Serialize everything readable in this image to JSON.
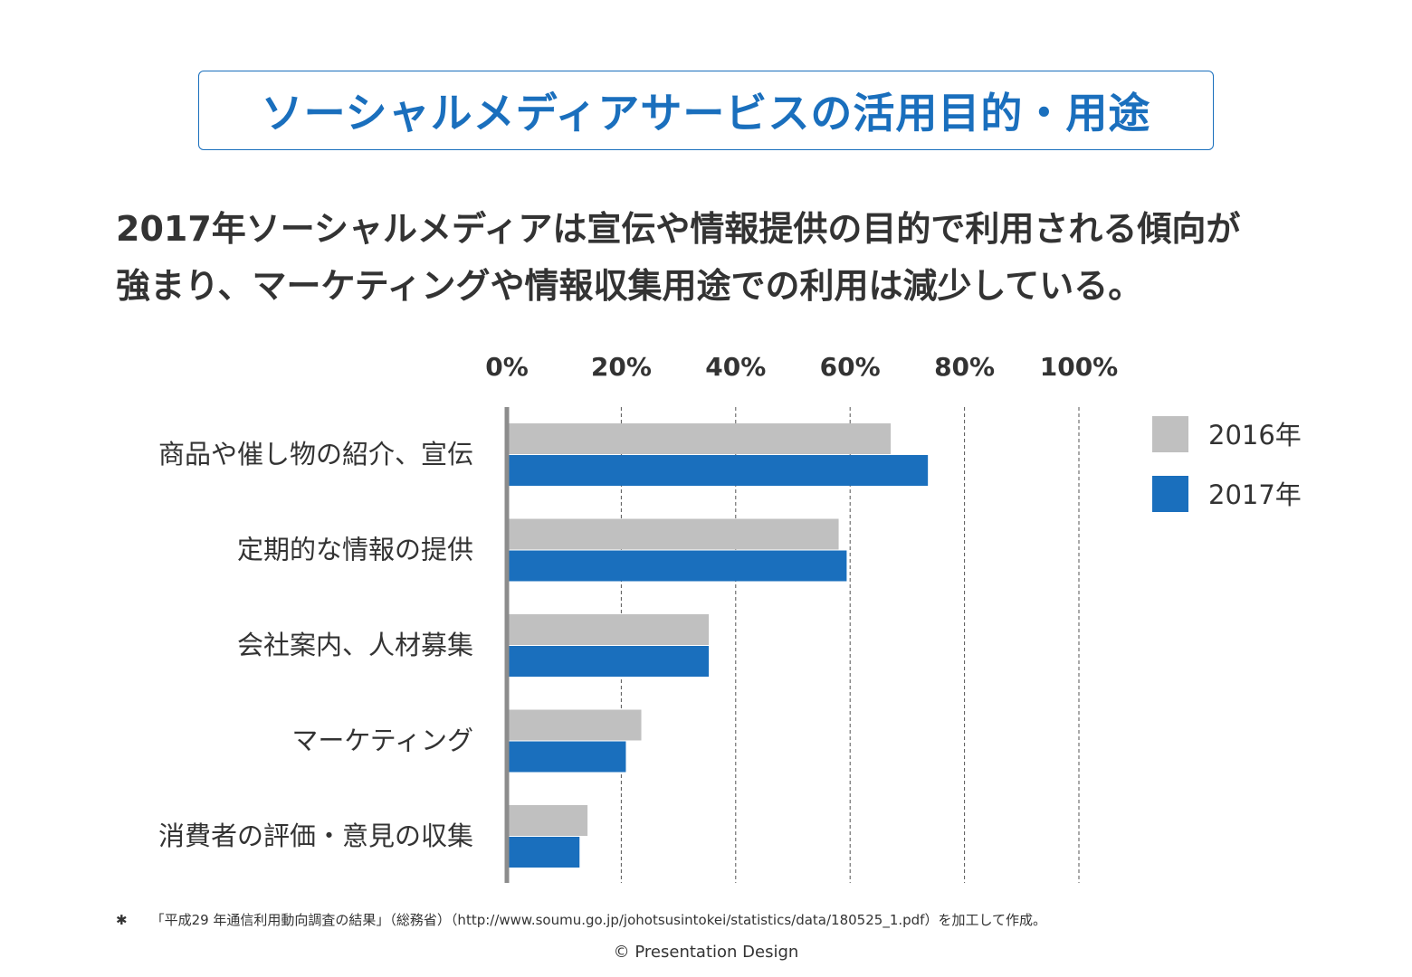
{
  "title": "ソーシャルメディアサービスの活用目的・用途",
  "subtitle": {
    "line1": "2017年ソーシャルメディアは宣伝や情報提供の目的で利用される傾向が",
    "line2": "強まり、マーケティングや情報収集用途での利用は減少している。"
  },
  "chart_data": {
    "type": "bar",
    "orientation": "horizontal",
    "categories": [
      "商品や催し物の紹介、宣伝",
      "定期的な情報の提供",
      "会社案内、人材募集",
      "マーケティング",
      "消費者の評価・意見の収集"
    ],
    "series": [
      {
        "name": "2016年",
        "color": "#c0c0c0",
        "values": [
          67.1,
          58.0,
          35.3,
          23.5,
          14.1
        ]
      },
      {
        "name": "2017年",
        "color": "#1a6fbd",
        "values": [
          73.6,
          59.4,
          35.3,
          20.8,
          12.7
        ]
      }
    ],
    "xlim": [
      0,
      100
    ],
    "xticks": [
      "0%",
      "20%",
      "40%",
      "60%",
      "80%",
      "100%"
    ],
    "tick_values": [
      0,
      20,
      40,
      60,
      80,
      100
    ],
    "grid": "vertical dashed",
    "legend_position": "top-right"
  },
  "footnote": {
    "mark": "✱",
    "text": "「平成29 年通信利用動向調査の結果」（総務省）（http://www.soumu.go.jp/johotsusintokei/statistics/data/180525_1.pdf）を加工して作成。"
  },
  "copyright": "© Presentation Design"
}
